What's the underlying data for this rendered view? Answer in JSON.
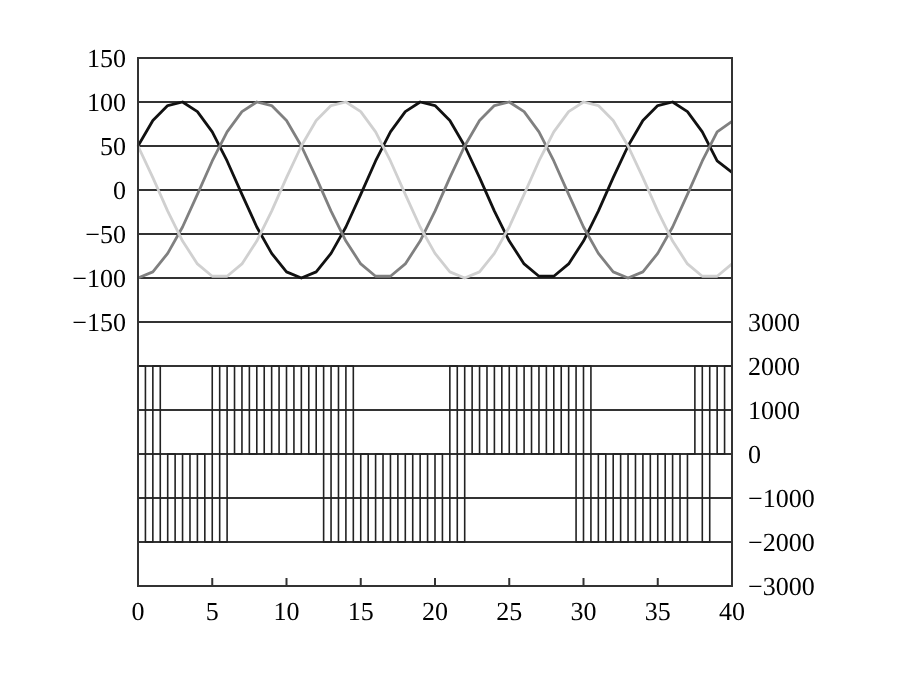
{
  "chart_data": {
    "type": "line",
    "x": [
      0,
      1,
      2,
      3,
      4,
      5,
      6,
      7,
      8,
      9,
      10,
      11,
      12,
      13,
      14,
      15,
      16,
      17,
      18,
      19,
      20,
      21,
      22,
      23,
      24,
      25,
      26,
      27,
      28,
      29,
      30,
      31,
      32,
      33,
      34,
      35,
      36,
      37,
      38,
      39,
      40
    ],
    "series": [
      {
        "color": "#111111",
        "values": [
          50,
          79,
          96,
          100,
          89,
          66,
          33,
          -5,
          -42,
          -72,
          -93,
          -100,
          -93,
          -72,
          -42,
          -5,
          33,
          66,
          89,
          100,
          96,
          79,
          50,
          14,
          -24,
          -58,
          -84,
          -98,
          -98,
          -84,
          -58,
          -24,
          14,
          50,
          79,
          96,
          100,
          89,
          66,
          33,
          20
        ]
      },
      {
        "color": "#808080",
        "values": [
          -100,
          -93,
          -72,
          -42,
          -5,
          33,
          66,
          89,
          100,
          96,
          79,
          50,
          14,
          -24,
          -58,
          -84,
          -98,
          -98,
          -84,
          -58,
          -24,
          14,
          50,
          79,
          96,
          100,
          89,
          66,
          33,
          -5,
          -42,
          -72,
          -93,
          -100,
          -93,
          -72,
          -42,
          -5,
          33,
          66,
          78
        ]
      },
      {
        "color": "#d0d0d0",
        "values": [
          50,
          14,
          -24,
          -58,
          -84,
          -98,
          -98,
          -84,
          -58,
          -24,
          14,
          50,
          79,
          96,
          100,
          89,
          66,
          33,
          -5,
          -42,
          -72,
          -93,
          -100,
          -93,
          -72,
          -42,
          -5,
          33,
          66,
          89,
          100,
          96,
          79,
          50,
          14,
          -24,
          -58,
          -84,
          -98,
          -98,
          -84
        ]
      },
      {
        "type": "step",
        "axis": "y2",
        "color": "#222222",
        "x": [
          0,
          0.5,
          1,
          1.5,
          2,
          2.5,
          3,
          3.5,
          4,
          4.5,
          5,
          5.5,
          6,
          6.5,
          7,
          7.5,
          8,
          8.5,
          9,
          9.5,
          10,
          10.5,
          11,
          11.5,
          12,
          12.5,
          13,
          13.5,
          14,
          14.5,
          15,
          15.5,
          16,
          16.5,
          17,
          17.5,
          18,
          18.5,
          19,
          19.5,
          20,
          20.5,
          21,
          21.5,
          22,
          22.5,
          23,
          23.5,
          24,
          24.5,
          25,
          25.5,
          26,
          26.5,
          27,
          27.5,
          28,
          28.5,
          29,
          29.5,
          30,
          30.5,
          31,
          31.5,
          32,
          32.5,
          33,
          33.5,
          34,
          34.5,
          35,
          35.5,
          36,
          36.5,
          37,
          37.5,
          38,
          38.5,
          39,
          39.5,
          40
        ],
        "values": [
          2000,
          -2000,
          2000,
          -2000,
          0,
          -2000,
          0,
          -2000,
          0,
          -2000,
          2000,
          -2000,
          2000,
          0,
          2000,
          0,
          2000,
          0,
          2000,
          0,
          2000,
          0,
          2000,
          0,
          2000,
          -2000,
          2000,
          -2000,
          2000,
          -2000,
          0,
          -2000,
          0,
          -2000,
          0,
          -2000,
          0,
          -2000,
          0,
          -2000,
          0,
          -2000,
          2000,
          -2000,
          2000,
          0,
          2000,
          0,
          2000,
          0,
          2000,
          0,
          2000,
          0,
          2000,
          0,
          2000,
          0,
          2000,
          -2000,
          2000,
          -2000,
          0,
          -2000,
          0,
          -2000,
          0,
          -2000,
          0,
          -2000,
          0,
          -2000,
          0,
          -2000,
          0,
          2000,
          -2000,
          2000,
          0,
          2000,
          0
        ]
      }
    ],
    "xlim": [
      0,
      40
    ],
    "xticks": [
      0,
      5,
      10,
      15,
      20,
      25,
      30,
      35,
      40
    ],
    "ylim": [
      -450,
      150
    ],
    "yticks": [
      -150,
      -100,
      -50,
      0,
      50,
      100,
      150
    ],
    "y2lim": [
      -3000,
      9000
    ],
    "y2ticks": [
      -3000,
      -2000,
      -1000,
      0,
      1000,
      2000,
      3000
    ],
    "grid": "y"
  }
}
